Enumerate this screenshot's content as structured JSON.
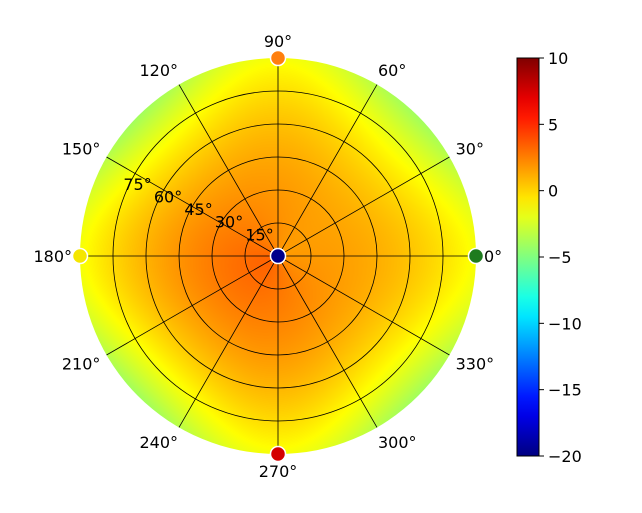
{
  "chart_data": {
    "type": "heatmap",
    "projection": "polar",
    "colormap": "jet",
    "angle_ticks": [
      "0°",
      "30°",
      "60°",
      "90°",
      "120°",
      "150°",
      "180°",
      "210°",
      "240°",
      "270°",
      "300°",
      "330°"
    ],
    "radial_ticks": [
      "15°",
      "30°",
      "45°",
      "60°",
      "75°"
    ],
    "colorbar": {
      "min": -20,
      "max": 10,
      "ticks": [
        "10",
        "5",
        "0",
        "−5",
        "−10",
        "−15",
        "−20"
      ],
      "tick_values": [
        10,
        5,
        0,
        -5,
        -10,
        -15,
        -20
      ]
    },
    "field": {
      "center_value": 2.5,
      "edge_value": -1.5,
      "edge_modulation": 2.5,
      "hot_direction_deg": 210
    },
    "markers": [
      {
        "angle_deg": 0,
        "radius_deg": 90,
        "value": -5,
        "color": "#1e7b1e"
      },
      {
        "angle_deg": 90,
        "radius_deg": 90,
        "value": 5,
        "color": "#ff7f0e"
      },
      {
        "angle_deg": 180,
        "radius_deg": 90,
        "value": -1,
        "color": "#f5e600"
      },
      {
        "angle_deg": 270,
        "radius_deg": 90,
        "value": 10,
        "color": "#d40000"
      },
      {
        "angle_deg": 0,
        "radius_deg": 0,
        "value": -20,
        "color": "#00008b"
      }
    ]
  }
}
